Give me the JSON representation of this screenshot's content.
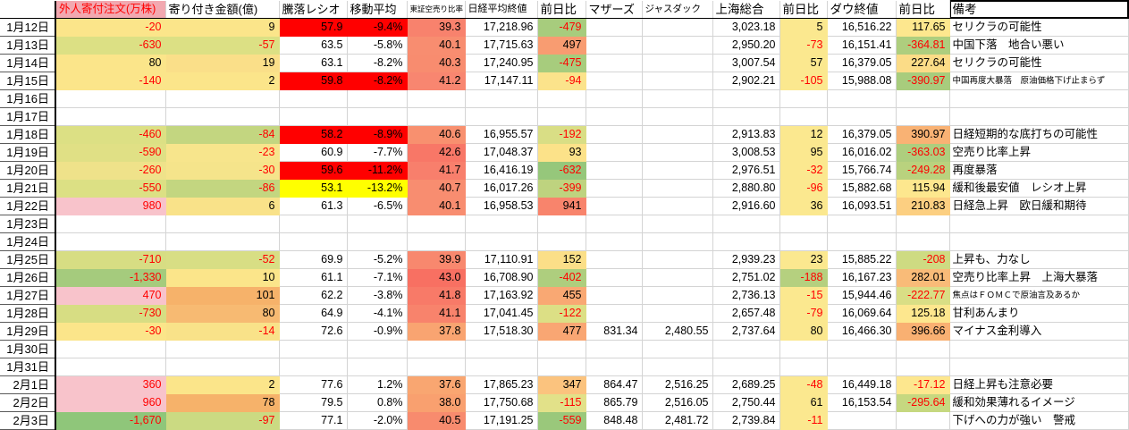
{
  "app": {
    "kind": "stock-diary-spreadsheet"
  },
  "columns": [
    {
      "key": "date",
      "label": ""
    },
    {
      "key": "foreign_orders",
      "label": "外人寄付注文(万株)",
      "hbg": "#F2A8B0",
      "hfg": "#FF0000"
    },
    {
      "key": "opening_amount",
      "label": "寄り付き金額(億)"
    },
    {
      "key": "updown_ratio",
      "label": "騰落レシオ"
    },
    {
      "key": "moving_avg",
      "label": "移動平均"
    },
    {
      "key": "short_sell_ratio",
      "label": "東証空売り比率"
    },
    {
      "key": "nikkei_close",
      "label": "日経平均終値"
    },
    {
      "key": "nikkei_change",
      "label": "前日比"
    },
    {
      "key": "mothers",
      "label": "マザーズ"
    },
    {
      "key": "jasdaq",
      "label": "ジャスダック"
    },
    {
      "key": "shanghai",
      "label": "上海総合"
    },
    {
      "key": "shanghai_change",
      "label": "前日比"
    },
    {
      "key": "dow_close",
      "label": "ダウ終値"
    },
    {
      "key": "dow_change",
      "label": "前日比"
    },
    {
      "key": "remarks",
      "label": "備考",
      "selected": true
    }
  ],
  "rows": [
    {
      "date": "1月12日",
      "cells": [
        {
          "v": "-20",
          "bg": "#FBE58A",
          "fg": "#FF0000"
        },
        {
          "v": "9",
          "bg": "#FBE58A"
        },
        {
          "v": "57.9",
          "bg": "#FF0000"
        },
        {
          "v": "-9.4%",
          "bg": "#FF0000"
        },
        {
          "v": "39.3",
          "bg": "#F8826D"
        },
        {
          "v": "17,218.96"
        },
        {
          "v": "-479",
          "bg": "#A7CC7D",
          "fg": "#FF0000"
        },
        null,
        null,
        {
          "v": "3,023.18"
        },
        {
          "v": "5",
          "bg": "#FBE88F"
        },
        {
          "v": "16,516.22"
        },
        {
          "v": "117.65",
          "bg": "#FDE78E"
        },
        {
          "v": "セリクラの可能性"
        }
      ]
    },
    {
      "date": "1月13日",
      "cells": [
        {
          "v": "-630",
          "bg": "#DCE084",
          "fg": "#FF0000"
        },
        {
          "v": "-57",
          "bg": "#DCE084",
          "fg": "#FF0000"
        },
        {
          "v": "63.5"
        },
        {
          "v": "-5.8%"
        },
        {
          "v": "40.1",
          "bg": "#F88D70"
        },
        {
          "v": "17,715.63"
        },
        {
          "v": "497",
          "bg": "#F89C71"
        },
        null,
        null,
        {
          "v": "2,950.20"
        },
        {
          "v": "-73",
          "bg": "#FBE88F",
          "fg": "#FF0000"
        },
        {
          "v": "16,151.41"
        },
        {
          "v": "-364.81",
          "bg": "#AECE7E",
          "fg": "#FF0000"
        },
        {
          "v": "中国下落　地合い悪い"
        }
      ]
    },
    {
      "date": "1月14日",
      "cells": [
        {
          "v": "80",
          "bg": "#FBE58A"
        },
        {
          "v": "19",
          "bg": "#FADF89"
        },
        {
          "v": "63.1"
        },
        {
          "v": "-8.2%"
        },
        {
          "v": "40.3",
          "bg": "#F88C6F"
        },
        {
          "v": "17,240.95"
        },
        {
          "v": "-475",
          "bg": "#A7CC7D",
          "fg": "#FF0000"
        },
        null,
        null,
        {
          "v": "3,007.54"
        },
        {
          "v": "57",
          "bg": "#FBE88F"
        },
        {
          "v": "16,379.05"
        },
        {
          "v": "227.64",
          "bg": "#FBDC87"
        },
        {
          "v": "セリクラの可能性"
        }
      ]
    },
    {
      "date": "1月15日",
      "cells": [
        {
          "v": "-140",
          "bg": "#FBE58A",
          "fg": "#FF0000"
        },
        {
          "v": "2",
          "bg": "#FBE58A"
        },
        {
          "v": "59.8",
          "bg": "#FF0000"
        },
        {
          "v": "-8.2%",
          "bg": "#FF0000"
        },
        {
          "v": "41.2",
          "bg": "#F88670"
        },
        {
          "v": "17,147.11"
        },
        {
          "v": "-94",
          "bg": "#FBE38B",
          "fg": "#FF0000"
        },
        null,
        null,
        {
          "v": "2,902.21"
        },
        {
          "v": "-105",
          "bg": "#FBE88F",
          "fg": "#FF0000"
        },
        {
          "v": "15,988.08"
        },
        {
          "v": "-390.97",
          "bg": "#A8CC7D",
          "fg": "#FF0000"
        },
        {
          "v": "中国再度大暴落　原油価格下げ止まらず",
          "small": true
        }
      ]
    },
    {
      "date": "1月16日",
      "cells": [
        null,
        null,
        null,
        null,
        null,
        null,
        null,
        null,
        null,
        null,
        null,
        null,
        null,
        null
      ]
    },
    {
      "date": "1月17日",
      "cells": [
        null,
        null,
        null,
        null,
        null,
        null,
        null,
        null,
        null,
        null,
        null,
        null,
        null,
        null
      ]
    },
    {
      "date": "1月18日",
      "cells": [
        {
          "v": "-460",
          "bg": "#DCE084",
          "fg": "#FF0000"
        },
        {
          "v": "-84",
          "bg": "#C3D680",
          "fg": "#FF0000"
        },
        {
          "v": "58.2",
          "bg": "#FF0000"
        },
        {
          "v": "-8.9%",
          "bg": "#FF0000"
        },
        {
          "v": "40.6",
          "bg": "#F8906F"
        },
        {
          "v": "16,955.57"
        },
        {
          "v": "-192",
          "bg": "#D9DE85",
          "fg": "#FF0000"
        },
        null,
        null,
        {
          "v": "2,913.83"
        },
        {
          "v": "12",
          "bg": "#FBE88F"
        },
        {
          "v": "16,379.05"
        },
        {
          "v": "390.97",
          "bg": "#F9B274"
        },
        {
          "v": "日経短期的な底打ちの可能性"
        }
      ]
    },
    {
      "date": "1月19日",
      "cells": [
        {
          "v": "-590",
          "bg": "#E0E085",
          "fg": "#FF0000"
        },
        {
          "v": "-23",
          "bg": "#F7E58C",
          "fg": "#FF0000"
        },
        {
          "v": "60.9"
        },
        {
          "v": "-7.7%"
        },
        {
          "v": "42.6",
          "bg": "#F87767"
        },
        {
          "v": "17,048.37"
        },
        {
          "v": "93",
          "bg": "#FCE289"
        },
        null,
        null,
        {
          "v": "3,008.53"
        },
        {
          "v": "95",
          "bg": "#FBE88F"
        },
        {
          "v": "16,016.02"
        },
        {
          "v": "-363.03",
          "bg": "#AECE7E",
          "fg": "#FF0000"
        },
        {
          "v": "空売り比率上昇"
        }
      ]
    },
    {
      "date": "1月20日",
      "cells": [
        {
          "v": "-260",
          "bg": "#EFE28A",
          "fg": "#FF0000"
        },
        {
          "v": "-30",
          "bg": "#F5E48B",
          "fg": "#FF0000"
        },
        {
          "v": "59.6",
          "bg": "#FF0000"
        },
        {
          "v": "-11.2%",
          "bg": "#FF0000"
        },
        {
          "v": "41.7",
          "bg": "#F87F6C"
        },
        {
          "v": "16,416.19"
        },
        {
          "v": "-632",
          "bg": "#96C77B",
          "fg": "#FF0000"
        },
        null,
        null,
        {
          "v": "2,976.51"
        },
        {
          "v": "-32",
          "bg": "#FBE88F",
          "fg": "#FF0000"
        },
        {
          "v": "15,766.74"
        },
        {
          "v": "-249.28",
          "bg": "#B9D27E",
          "fg": "#FF0000"
        },
        {
          "v": "再度暴落"
        }
      ]
    },
    {
      "date": "1月21日",
      "cells": [
        {
          "v": "-550",
          "bg": "#DCE084",
          "fg": "#FF0000"
        },
        {
          "v": "-86",
          "bg": "#C3D680",
          "fg": "#FF0000"
        },
        {
          "v": "53.1",
          "bg": "#FFFF00"
        },
        {
          "v": "-13.2%",
          "bg": "#FFFF00"
        },
        {
          "v": "40.7",
          "bg": "#F88D70"
        },
        {
          "v": "16,017.26"
        },
        {
          "v": "-399",
          "bg": "#BED37F",
          "fg": "#FF0000"
        },
        null,
        null,
        {
          "v": "2,880.80"
        },
        {
          "v": "-96",
          "bg": "#FBE88F",
          "fg": "#FF0000"
        },
        {
          "v": "15,882.68"
        },
        {
          "v": "115.94",
          "bg": "#FDE78E"
        },
        {
          "v": "緩和後最安値　レシオ上昇"
        }
      ]
    },
    {
      "date": "1月22日",
      "cells": [
        {
          "v": "980",
          "bg": "#F8C3CB",
          "fg": "#FF0000"
        },
        {
          "v": "6",
          "bg": "#F9E289"
        },
        {
          "v": "61.3"
        },
        {
          "v": "-6.5%"
        },
        {
          "v": "40.1",
          "bg": "#F88D70"
        },
        {
          "v": "16,958.53"
        },
        {
          "v": "941",
          "bg": "#F8846C"
        },
        null,
        null,
        {
          "v": "2,916.60"
        },
        {
          "v": "36",
          "bg": "#FBE88F"
        },
        {
          "v": "16,093.51"
        },
        {
          "v": "210.83",
          "bg": "#FCCF81"
        },
        {
          "v": "日経急上昇　欧日緩和期待"
        }
      ]
    },
    {
      "date": "1月23日",
      "cells": [
        null,
        null,
        null,
        null,
        null,
        null,
        null,
        null,
        null,
        null,
        null,
        null,
        null,
        null
      ]
    },
    {
      "date": "1月24日",
      "cells": [
        null,
        null,
        null,
        null,
        null,
        null,
        null,
        null,
        null,
        null,
        null,
        null,
        null,
        null
      ]
    },
    {
      "date": "1月25日",
      "cells": [
        {
          "v": "-710",
          "bg": "#D7DD83",
          "fg": "#FF0000"
        },
        {
          "v": "-52",
          "bg": "#D8DE84",
          "fg": "#FF0000"
        },
        {
          "v": "69.9"
        },
        {
          "v": "-5.2%"
        },
        {
          "v": "39.9",
          "bg": "#F8886E"
        },
        {
          "v": "17,110.91"
        },
        {
          "v": "152",
          "bg": "#FBDF88"
        },
        null,
        null,
        {
          "v": "2,939.23"
        },
        {
          "v": "23",
          "bg": "#FBE88F"
        },
        {
          "v": "15,885.22"
        },
        {
          "v": "-208",
          "bg": "#CEDB82",
          "fg": "#FF0000"
        },
        {
          "v": "上昇も、力なし"
        }
      ]
    },
    {
      "date": "1月26日",
      "cells": [
        {
          "v": "-1,330",
          "bg": "#A5CB7D",
          "fg": "#FF0000"
        },
        {
          "v": "10",
          "bg": "#FBE58A"
        },
        {
          "v": "61.1"
        },
        {
          "v": "-7.1%"
        },
        {
          "v": "43.0",
          "bg": "#F87062"
        },
        {
          "v": "16,708.90"
        },
        {
          "v": "-402",
          "bg": "#AECE7E",
          "fg": "#FF0000"
        },
        null,
        null,
        {
          "v": "2,751.02"
        },
        {
          "v": "-188",
          "bg": "#B5D07F",
          "fg": "#FF0000"
        },
        {
          "v": "16,167.23"
        },
        {
          "v": "282.01",
          "bg": "#F9BB78"
        },
        {
          "v": "空売り比率上昇　上海大暴落"
        }
      ]
    },
    {
      "date": "1月27日",
      "cells": [
        {
          "v": "470",
          "bg": "#F8C3CB",
          "fg": "#FF0000"
        },
        {
          "v": "101",
          "bg": "#F6B26A"
        },
        {
          "v": "62.2"
        },
        {
          "v": "-3.8%"
        },
        {
          "v": "41.8",
          "bg": "#F87A68"
        },
        {
          "v": "17,163.92"
        },
        {
          "v": "455",
          "bg": "#F9A873"
        },
        null,
        null,
        {
          "v": "2,736.13"
        },
        {
          "v": "-15",
          "bg": "#FBE88F",
          "fg": "#FF0000"
        },
        {
          "v": "15,944.46"
        },
        {
          "v": "-222.77",
          "bg": "#D9DE85",
          "fg": "#FF0000"
        },
        {
          "v": "焦点はＦＯＭＣで原油言及あるか",
          "small": true
        }
      ]
    },
    {
      "date": "1月28日",
      "cells": [
        {
          "v": "-730",
          "bg": "#D7DD83",
          "fg": "#FF0000"
        },
        {
          "v": "80",
          "bg": "#F7BA72"
        },
        {
          "v": "64.9"
        },
        {
          "v": "-4.1%"
        },
        {
          "v": "41.1",
          "bg": "#F8836C"
        },
        {
          "v": "17,041.45"
        },
        {
          "v": "-122",
          "bg": "#DCDF85",
          "fg": "#FF0000"
        },
        null,
        null,
        {
          "v": "2,657.48"
        },
        {
          "v": "-79",
          "bg": "#FBE88F",
          "fg": "#FF0000"
        },
        {
          "v": "16,069.64"
        },
        {
          "v": "125.18",
          "bg": "#FDE78E"
        },
        {
          "v": "甘利あんまり"
        }
      ]
    },
    {
      "date": "1月29日",
      "cells": [
        {
          "v": "-30",
          "bg": "#FBE58A",
          "fg": "#FF0000"
        },
        {
          "v": "-14",
          "bg": "#F9E289",
          "fg": "#FF0000"
        },
        {
          "v": "72.6"
        },
        {
          "v": "-0.9%"
        },
        {
          "v": "37.8",
          "bg": "#F9A471"
        },
        {
          "v": "17,518.30"
        },
        {
          "v": "477",
          "bg": "#F9A673"
        },
        {
          "v": "831.34"
        },
        {
          "v": "2,480.55"
        },
        {
          "v": "2,737.64"
        },
        {
          "v": "80",
          "bg": "#FBE88F"
        },
        {
          "v": "16,466.30"
        },
        {
          "v": "396.66",
          "bg": "#F9B072"
        },
        {
          "v": "マイナス金利導入"
        }
      ]
    },
    {
      "date": "1月30日",
      "cells": [
        null,
        null,
        null,
        null,
        null,
        null,
        null,
        null,
        null,
        null,
        null,
        null,
        null,
        null
      ]
    },
    {
      "date": "1月31日",
      "cells": [
        null,
        null,
        null,
        null,
        null,
        null,
        null,
        null,
        null,
        null,
        null,
        null,
        null,
        null
      ]
    },
    {
      "date": "2月1日",
      "cells": [
        {
          "v": "360",
          "bg": "#F8C3CB",
          "fg": "#FF0000"
        },
        {
          "v": "2",
          "bg": "#FBE58A"
        },
        {
          "v": "77.6"
        },
        {
          "v": "1.2%"
        },
        {
          "v": "37.6",
          "bg": "#F9A671"
        },
        {
          "v": "17,865.23"
        },
        {
          "v": "347",
          "bg": "#FBC37E"
        },
        {
          "v": "864.47"
        },
        {
          "v": "2,516.25"
        },
        {
          "v": "2,689.25"
        },
        {
          "v": "-48",
          "bg": "#FBE88F",
          "fg": "#FF0000"
        },
        {
          "v": "16,449.18"
        },
        {
          "v": "-17.12",
          "bg": "#FDE78E",
          "fg": "#FF0000"
        },
        {
          "v": "日経上昇も注意必要"
        }
      ]
    },
    {
      "date": "2月2日",
      "cells": [
        {
          "v": "960",
          "bg": "#F8C3CB",
          "fg": "#FF0000"
        },
        {
          "v": "78",
          "bg": "#F6B26A"
        },
        {
          "v": "79.5"
        },
        {
          "v": "0.8%"
        },
        {
          "v": "38.0",
          "bg": "#F9A06F"
        },
        {
          "v": "17,750.68"
        },
        {
          "v": "-115",
          "bg": "#E2E189",
          "fg": "#FF0000"
        },
        {
          "v": "865.79"
        },
        {
          "v": "2,516.05"
        },
        {
          "v": "2,750.44"
        },
        {
          "v": "61",
          "bg": "#FBE88F"
        },
        {
          "v": "16,153.54"
        },
        {
          "v": "-295.64",
          "bg": "#C6D880",
          "fg": "#FF0000"
        },
        {
          "v": "緩和効果薄れるイメージ"
        }
      ]
    },
    {
      "date": "2月3日",
      "cells": [
        {
          "v": "-1,670",
          "bg": "#8FC67A",
          "fg": "#FF0000"
        },
        {
          "v": "-97",
          "bg": "#CBDA82",
          "fg": "#FF0000"
        },
        {
          "v": "77.1"
        },
        {
          "v": "-2.0%"
        },
        {
          "v": "40.5",
          "bg": "#F88B6E"
        },
        {
          "v": "17,191.25"
        },
        {
          "v": "-559",
          "bg": "#9AC87B",
          "fg": "#FF0000"
        },
        {
          "v": "848.48"
        },
        {
          "v": "2,481.72"
        },
        {
          "v": "2,739.84"
        },
        {
          "v": "-11",
          "bg": "#FBE88F",
          "fg": "#FF0000"
        },
        null,
        null,
        {
          "v": "下げへの力が強い　警戒"
        }
      ]
    }
  ]
}
